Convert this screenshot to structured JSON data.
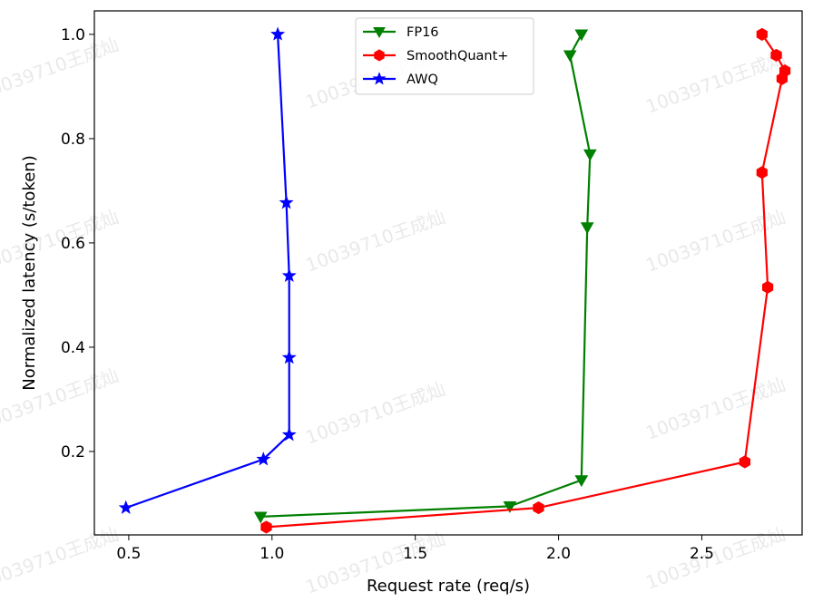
{
  "chart_data": {
    "type": "line",
    "xlabel": "Request rate (req/s)",
    "ylabel": "Normalized latency (s/token)",
    "xlim": [
      0.38,
      2.85
    ],
    "ylim": [
      0.04,
      1.045
    ],
    "xticks": [
      0.5,
      1.0,
      1.5,
      2.0,
      2.5
    ],
    "xtick_labels": [
      "0.5",
      "1.0",
      "1.5",
      "2.0",
      "2.5"
    ],
    "yticks": [
      0.2,
      0.4,
      0.6,
      0.8,
      1.0
    ],
    "ytick_labels": [
      "0.2",
      "0.4",
      "0.6",
      "0.8",
      "1.0"
    ],
    "grid": false,
    "legend": "top-center",
    "series": [
      {
        "name": "FP16",
        "color": "#008000",
        "marker": "triangle-down",
        "x": [
          0.96,
          1.83,
          2.08,
          2.1,
          2.11,
          2.04,
          2.08
        ],
        "y": [
          0.075,
          0.095,
          0.145,
          0.63,
          0.77,
          0.96,
          1.0
        ]
      },
      {
        "name": "SmoothQuant+",
        "color": "#ff0000",
        "marker": "hexagon",
        "x": [
          0.98,
          1.93,
          2.65,
          2.73,
          2.71,
          2.78,
          2.79,
          2.76,
          2.71
        ],
        "y": [
          0.055,
          0.092,
          0.18,
          0.515,
          0.735,
          0.915,
          0.93,
          0.96,
          1.0
        ]
      },
      {
        "name": "AWQ",
        "color": "#0000ff",
        "marker": "star",
        "x": [
          0.49,
          0.97,
          1.06,
          1.06,
          1.06,
          1.05,
          1.02
        ],
        "y": [
          0.092,
          0.185,
          0.232,
          0.38,
          0.537,
          0.677,
          1.0
        ]
      }
    ]
  },
  "watermark": "10039710王成灿"
}
